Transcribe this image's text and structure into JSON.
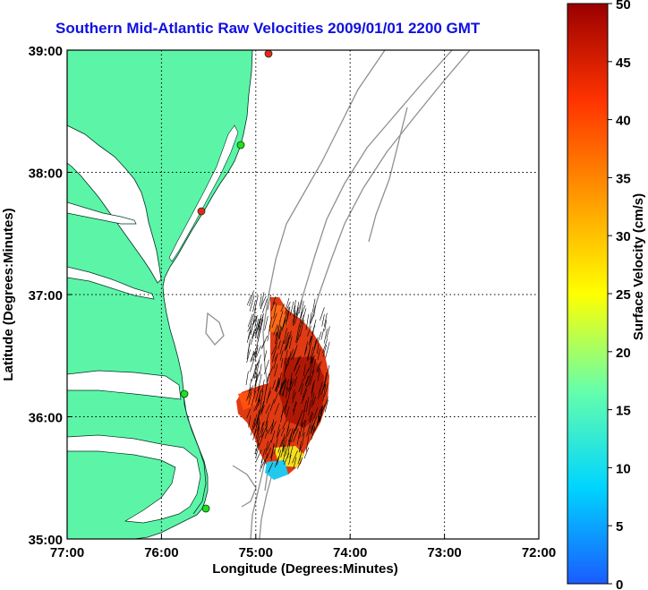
{
  "title": "Southern Mid-Atlantic Raw Velocities 2009/01/01 2200 GMT",
  "map": {
    "xlabel": "Longitude (Degrees:Minutes)",
    "ylabel": "Latitude (Degrees:Minutes)",
    "lon_ticks": [
      "77:00",
      "76:00",
      "75:00",
      "74:00",
      "73:00",
      "72:00"
    ],
    "lat_ticks": [
      "39:00",
      "38:00",
      "37:00",
      "36:00",
      "35:00"
    ],
    "lon_range": [
      -77,
      -72
    ],
    "lat_range": [
      35,
      39
    ],
    "land_color": "#5cf5a8",
    "isobath_color": "#909090",
    "station_colors": {
      "active": "#22dd22",
      "inactive": "#ee2222"
    }
  },
  "colorbar": {
    "label": "Surface Velocity (cm/s)",
    "ticks": [
      "0",
      "5",
      "10",
      "15",
      "20",
      "25",
      "30",
      "35",
      "40",
      "45",
      "50"
    ],
    "range": [
      0,
      50
    ],
    "colors": [
      "#1a5cff",
      "#00d5ff",
      "#66ffaa",
      "#ffff00",
      "#ff9900",
      "#ff3300",
      "#9a0000"
    ]
  }
}
